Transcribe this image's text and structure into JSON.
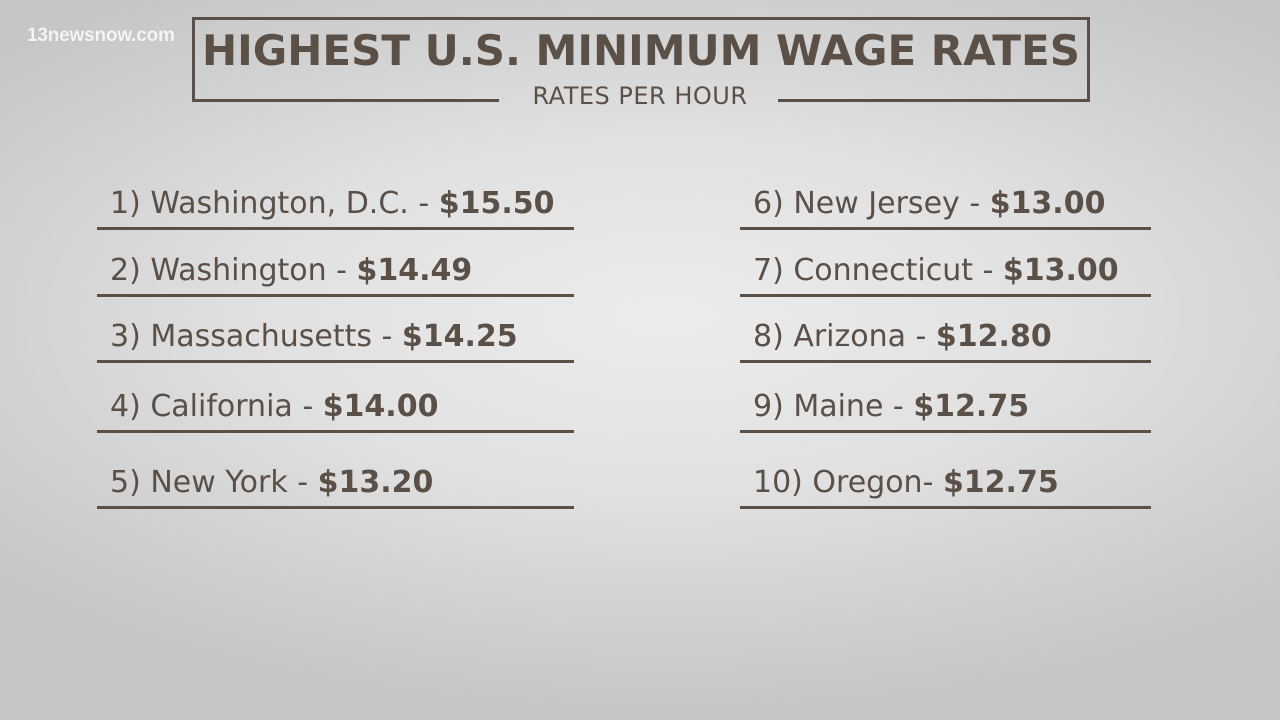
{
  "watermark": "13newsnow.com",
  "title": "HIGHEST U.S. MINIMUM WAGE RATES",
  "subtitle": "RATES PER HOUR",
  "colors": {
    "text": "#5a5048",
    "background": "#e1e1e1"
  },
  "rankings": [
    {
      "label": "1) Washington, D.C. - ",
      "amount": "$15.50"
    },
    {
      "label": "2) Washington - ",
      "amount": "$14.49"
    },
    {
      "label": "3) Massachusetts - ",
      "amount": "$14.25"
    },
    {
      "label": "4) California - ",
      "amount": "$14.00"
    },
    {
      "label": "5) New York - ",
      "amount": "$13.20"
    },
    {
      "label": "6) New Jersey - ",
      "amount": "$13.00"
    },
    {
      "label": "7) Connecticut - ",
      "amount": "$13.00"
    },
    {
      "label": "8) Arizona - ",
      "amount": "$12.80"
    },
    {
      "label": "9) Maine - ",
      "amount": "$12.75"
    },
    {
      "label": "10) Oregon- ",
      "amount": "$12.75"
    }
  ]
}
